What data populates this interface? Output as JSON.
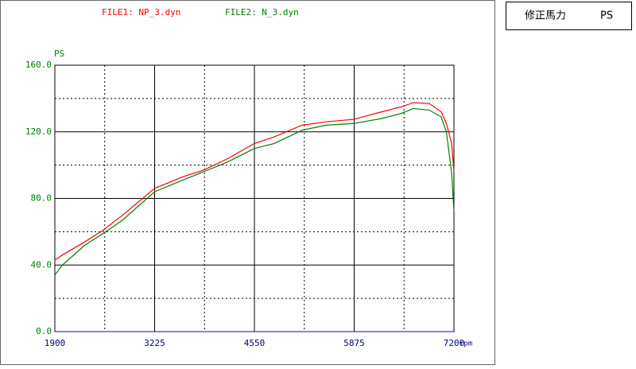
{
  "chart_data": {
    "type": "line",
    "series": [
      {
        "name": "FILE1: NP_3.dyn",
        "color": "#ff0000",
        "values": [
          43,
          46,
          54,
          61,
          70,
          86,
          93,
          97,
          104,
          113,
          117,
          124,
          126,
          127.5,
          132,
          135,
          137.5,
          137,
          132,
          125,
          113,
          96
        ]
      },
      {
        "name": "FILE2: N_3.dyn",
        "color": "#008000",
        "values": [
          34,
          40,
          52,
          59,
          67,
          84,
          91,
          96,
          102,
          110,
          113,
          121,
          124,
          125,
          128,
          131,
          134,
          133,
          129,
          120,
          95,
          72
        ]
      }
    ],
    "x": [
      1900,
      2000,
      2300,
      2544,
      2800,
      3225,
      3600,
      3875,
      4200,
      4550,
      4815,
      5184,
      5500,
      5870,
      6240,
      6500,
      6660,
      6873,
      7030,
      7100,
      7170,
      7200
    ],
    "xlim": [
      1900,
      7200
    ],
    "xticks": [
      1900,
      3225,
      4550,
      5875,
      7200
    ],
    "x_minor_ticks": [
      2562.5,
      3887.5,
      5212.5,
      6537.5
    ],
    "ylim": [
      0,
      160
    ],
    "yticks": [
      {
        "value": 0,
        "label": "0.0"
      },
      {
        "value": 40,
        "label": "40.0"
      },
      {
        "value": 80,
        "label": "80.0"
      },
      {
        "value": 120,
        "label": "120.0"
      },
      {
        "value": 160,
        "label": "160.0"
      }
    ],
    "y_minor_ticks": [
      20,
      60,
      100,
      140
    ],
    "ylabel": "PS",
    "xlabel": "rpm",
    "panel_title": "修正馬力",
    "panel_unit": "PS",
    "grid": true
  }
}
